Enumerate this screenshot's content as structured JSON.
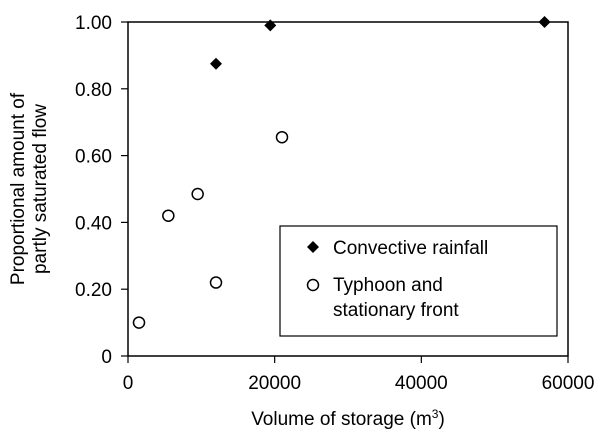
{
  "chart_data": {
    "type": "scatter",
    "title": "",
    "xlabel": "Volume of storage (m",
    "xlabel_sup": "3",
    "xlabel_end": ")",
    "ylabel_line1": "Proportional amount of",
    "ylabel_line2": "partly saturated flow",
    "xlim": [
      0,
      60000
    ],
    "ylim": [
      0,
      1.0
    ],
    "x_ticks": [
      0,
      20000,
      40000,
      60000
    ],
    "x_tick_labels": [
      "0",
      "20000",
      "40000",
      "60000"
    ],
    "y_ticks": [
      0,
      0.2,
      0.4,
      0.6,
      0.8,
      1.0
    ],
    "y_tick_labels": [
      "0",
      "0.20",
      "0.40",
      "0.60",
      "0.80",
      "1.00"
    ],
    "grid": false,
    "legend_position": "bottom-right",
    "series": [
      {
        "name": "Convective rainfall",
        "marker": "filled-diamond",
        "color": "#000000",
        "points": [
          {
            "x": 12000,
            "y": 0.875
          },
          {
            "x": 19400,
            "y": 0.99
          },
          {
            "x": 56800,
            "y": 1.0
          }
        ]
      },
      {
        "name_line1": "Typhoon and",
        "name_line2": "stationary front",
        "marker": "open-circle",
        "color": "#000000",
        "points": [
          {
            "x": 1500,
            "y": 0.1
          },
          {
            "x": 5500,
            "y": 0.42
          },
          {
            "x": 9500,
            "y": 0.485
          },
          {
            "x": 12000,
            "y": 0.22
          },
          {
            "x": 21000,
            "y": 0.655
          }
        ]
      }
    ]
  }
}
